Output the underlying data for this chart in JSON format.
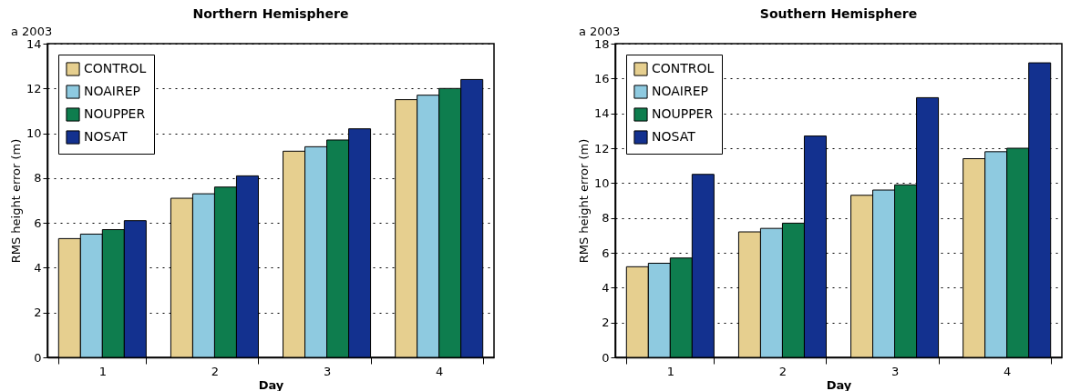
{
  "chart_data": [
    {
      "type": "bar",
      "title": "Northern Hemisphere",
      "annotations": [
        "a  2003"
      ],
      "xlabel": "Day",
      "ylabel": "RMS height error (m)",
      "categories": [
        "1",
        "2",
        "3",
        "4"
      ],
      "series": [
        {
          "name": "CONTROL",
          "color": "#e6cf8f",
          "values": [
            5.3,
            7.1,
            9.2,
            11.5
          ]
        },
        {
          "name": "NOAIREP",
          "color": "#8ecae0",
          "values": [
            5.5,
            7.3,
            9.4,
            11.7
          ]
        },
        {
          "name": "NOUPPER",
          "color": "#0e7d4e",
          "values": [
            5.7,
            7.6,
            9.7,
            12.0
          ]
        },
        {
          "name": "NOSAT",
          "color": "#13318f",
          "values": [
            6.1,
            8.1,
            10.2,
            12.4
          ]
        }
      ],
      "ylim": [
        0,
        14
      ],
      "yticks": [
        0,
        2,
        4,
        6,
        8,
        10,
        12,
        14
      ],
      "grid": "y",
      "legend": "top left"
    },
    {
      "type": "bar",
      "title": "Southern Hemisphere",
      "annotations": [
        "a  2003"
      ],
      "xlabel": "Day",
      "ylabel": "RMS height error (m)",
      "categories": [
        "1",
        "2",
        "3",
        "4"
      ],
      "series": [
        {
          "name": "CONTROL",
          "color": "#e6cf8f",
          "values": [
            5.2,
            7.2,
            9.3,
            11.4
          ]
        },
        {
          "name": "NOAIREP",
          "color": "#8ecae0",
          "values": [
            5.4,
            7.4,
            9.6,
            11.8
          ]
        },
        {
          "name": "NOUPPER",
          "color": "#0e7d4e",
          "values": [
            5.7,
            7.7,
            9.9,
            12.0
          ]
        },
        {
          "name": "NOSAT",
          "color": "#13318f",
          "values": [
            10.5,
            12.7,
            14.9,
            16.9
          ]
        }
      ],
      "ylim": [
        0,
        18
      ],
      "yticks": [
        0,
        2,
        4,
        6,
        8,
        10,
        12,
        14,
        16,
        18
      ],
      "grid": "y",
      "legend": "top left"
    }
  ]
}
